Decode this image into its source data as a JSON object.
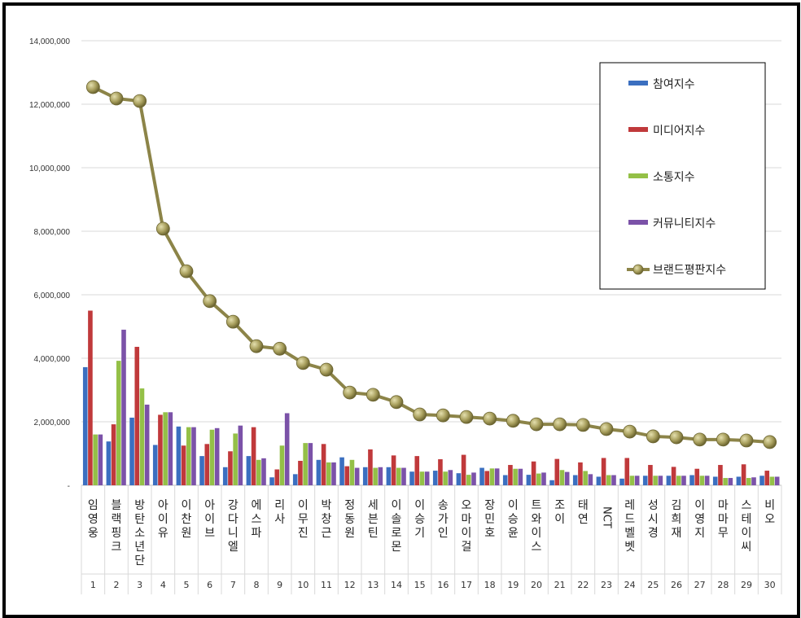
{
  "chart_data": {
    "type": "bar",
    "title": "",
    "xlabel": "",
    "ylabel": "",
    "ylim": [
      0,
      14000000
    ],
    "yticks": [
      "-",
      "2,000,000",
      "4,000,000",
      "6,000,000",
      "8,000,000",
      "10,000,000",
      "12,000,000",
      "14,000,000"
    ],
    "grid": true,
    "legend_position": "top-right",
    "categories": [
      "임영웅",
      "블랙핑크",
      "방탄소년단",
      "아이유",
      "이찬원",
      "아이브",
      "강다니엘",
      "에스파",
      "리사",
      "이무진",
      "박창근",
      "정동원",
      "세븐틴",
      "이솔로몬",
      "이승기",
      "송가인",
      "오마이걸",
      "장민호",
      "이승윤",
      "트와이스",
      "조이",
      "태연",
      "NCT",
      "레드벨벳",
      "성시경",
      "김희재",
      "이영지",
      "마마무",
      "스테이씨",
      "비오"
    ],
    "ranks": [
      "1",
      "2",
      "3",
      "4",
      "5",
      "6",
      "7",
      "8",
      "9",
      "10",
      "11",
      "12",
      "13",
      "14",
      "15",
      "16",
      "17",
      "18",
      "19",
      "20",
      "21",
      "22",
      "23",
      "24",
      "25",
      "26",
      "27",
      "28",
      "29",
      "30"
    ],
    "series": [
      {
        "name": "참여지수",
        "kind": "bar",
        "color": "#3b6fc0",
        "values": [
          3720000,
          1380000,
          2130000,
          1270000,
          1850000,
          920000,
          570000,
          920000,
          250000,
          350000,
          800000,
          880000,
          570000,
          570000,
          430000,
          460000,
          380000,
          550000,
          320000,
          330000,
          160000,
          320000,
          270000,
          210000,
          300000,
          300000,
          320000,
          270000,
          270000,
          300000
        ]
      },
      {
        "name": "미디어지수",
        "kind": "bar",
        "color": "#c0393b",
        "values": [
          5500000,
          1920000,
          4360000,
          2220000,
          1250000,
          1300000,
          1070000,
          1830000,
          500000,
          770000,
          1300000,
          600000,
          1130000,
          940000,
          920000,
          820000,
          960000,
          450000,
          640000,
          750000,
          830000,
          720000,
          860000,
          860000,
          640000,
          580000,
          520000,
          640000,
          660000,
          460000
        ]
      },
      {
        "name": "소통지수",
        "kind": "bar",
        "color": "#94c047",
        "values": [
          1600000,
          3920000,
          3050000,
          2300000,
          1830000,
          1750000,
          1630000,
          800000,
          1250000,
          1330000,
          720000,
          800000,
          550000,
          550000,
          430000,
          430000,
          330000,
          530000,
          520000,
          370000,
          480000,
          450000,
          320000,
          300000,
          300000,
          300000,
          300000,
          230000,
          230000,
          270000
        ]
      },
      {
        "name": "커뮤니티지수",
        "kind": "bar",
        "color": "#7b52a8",
        "values": [
          1600000,
          4900000,
          2540000,
          2300000,
          1830000,
          1800000,
          1880000,
          850000,
          2270000,
          1330000,
          720000,
          550000,
          570000,
          550000,
          430000,
          480000,
          400000,
          530000,
          520000,
          400000,
          420000,
          350000,
          320000,
          300000,
          300000,
          300000,
          300000,
          230000,
          250000,
          270000
        ]
      },
      {
        "name": "브랜드평판지수",
        "kind": "line",
        "color": "#8c8448",
        "values": [
          12540000,
          12180000,
          12100000,
          8080000,
          6740000,
          5800000,
          5150000,
          4380000,
          4300000,
          3850000,
          3640000,
          2920000,
          2850000,
          2620000,
          2230000,
          2200000,
          2150000,
          2100000,
          2030000,
          1920000,
          1920000,
          1900000,
          1770000,
          1690000,
          1540000,
          1510000,
          1440000,
          1440000,
          1410000,
          1360000
        ]
      }
    ]
  }
}
